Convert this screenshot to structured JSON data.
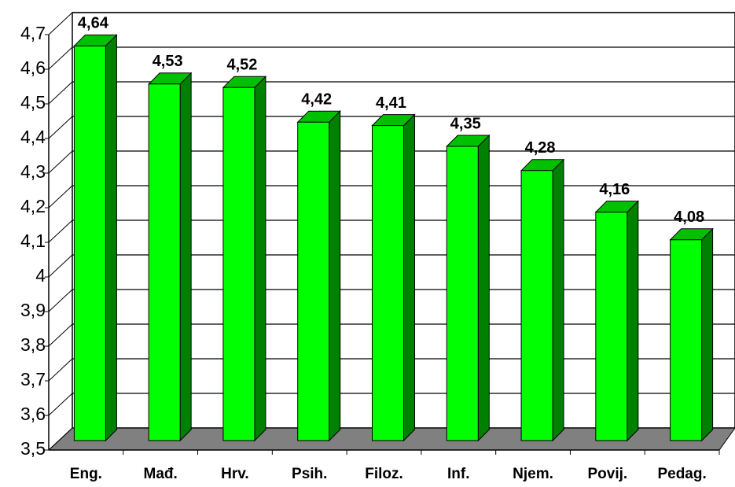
{
  "chart_data": {
    "type": "bar3d",
    "categories": [
      "Eng.",
      "Mađ.",
      "Hrv.",
      "Psih.",
      "Filoz.",
      "Inf.",
      "Njem.",
      "Povij.",
      "Pedag."
    ],
    "values": [
      4.64,
      4.53,
      4.52,
      4.42,
      4.41,
      4.35,
      4.28,
      4.16,
      4.08
    ],
    "value_labels": [
      "4,64",
      "4,53",
      "4,52",
      "4,42",
      "4,41",
      "4,35",
      "4,28",
      "4,16",
      "4,08"
    ],
    "color": "#00ff00",
    "ylim": [
      3.5,
      4.7
    ],
    "yticks": [
      {
        "value": 3.5,
        "label": "3,5"
      },
      {
        "value": 3.6,
        "label": "3,6"
      },
      {
        "value": 3.7,
        "label": "3,7"
      },
      {
        "value": 3.8,
        "label": "3,8"
      },
      {
        "value": 3.9,
        "label": "3,9"
      },
      {
        "value": 4,
        "label": "4"
      },
      {
        "value": 4.1,
        "label": "4,1"
      },
      {
        "value": 4.2,
        "label": "4,2"
      },
      {
        "value": 4.3,
        "label": "4,3"
      },
      {
        "value": 4.4,
        "label": "4,4"
      },
      {
        "value": 4.5,
        "label": "4,5"
      },
      {
        "value": 4.6,
        "label": "4,6"
      },
      {
        "value": 4.7,
        "label": "4,7"
      }
    ],
    "grid": true
  }
}
